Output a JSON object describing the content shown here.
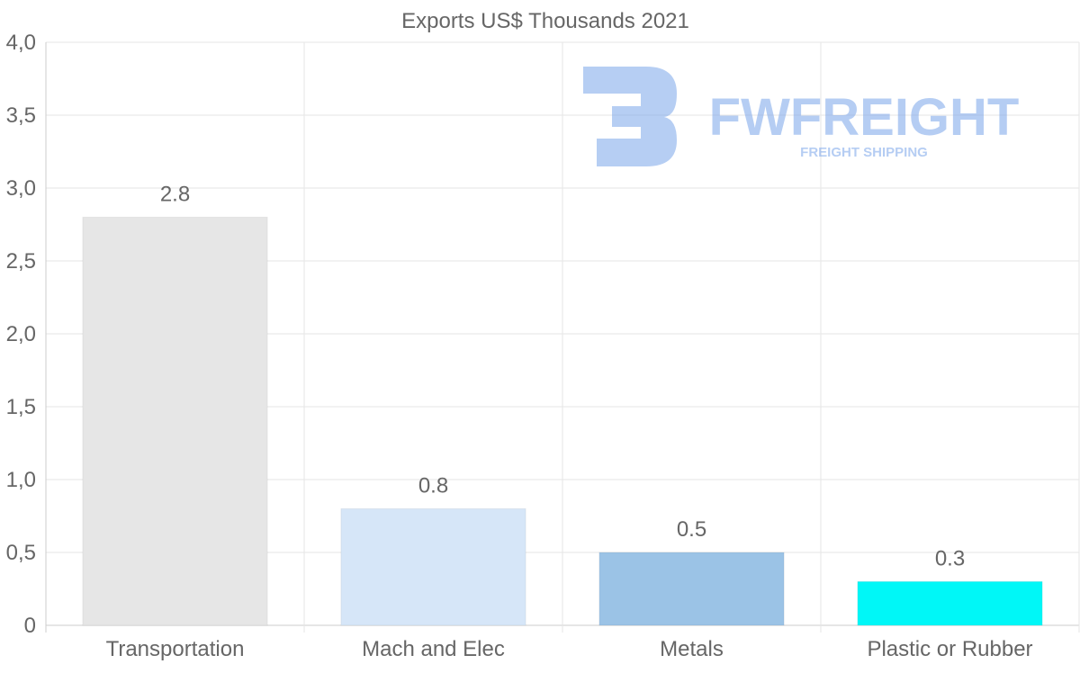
{
  "chart_data": {
    "type": "bar",
    "title": "Exports US$ Thousands 2021",
    "categories": [
      "Transportation",
      "Mach and Elec",
      "Metals",
      "Plastic or Rubber"
    ],
    "values": [
      2.8,
      0.8,
      0.5,
      0.3
    ],
    "value_labels": [
      "2.8",
      "0.8",
      "0.5",
      "0.3"
    ],
    "colors": [
      "#e6e6e6",
      "#d6e6f8",
      "#9bc3e6",
      "#00f7f7"
    ],
    "ylim": [
      0,
      4
    ],
    "yticks": [
      0,
      0.5,
      1,
      1.5,
      2,
      2.5,
      3,
      3.5,
      4
    ],
    "ytick_labels": [
      "0",
      "0,5",
      "1,0",
      "1,5",
      "2,0",
      "2,5",
      "3,0",
      "3,5",
      "4,0"
    ],
    "xlabel": "",
    "ylabel": "",
    "grid": true
  },
  "watermark": {
    "brand": "FWFREIGHT",
    "tagline": "FREIGHT SHIPPING",
    "color": "#7aa5ea"
  }
}
